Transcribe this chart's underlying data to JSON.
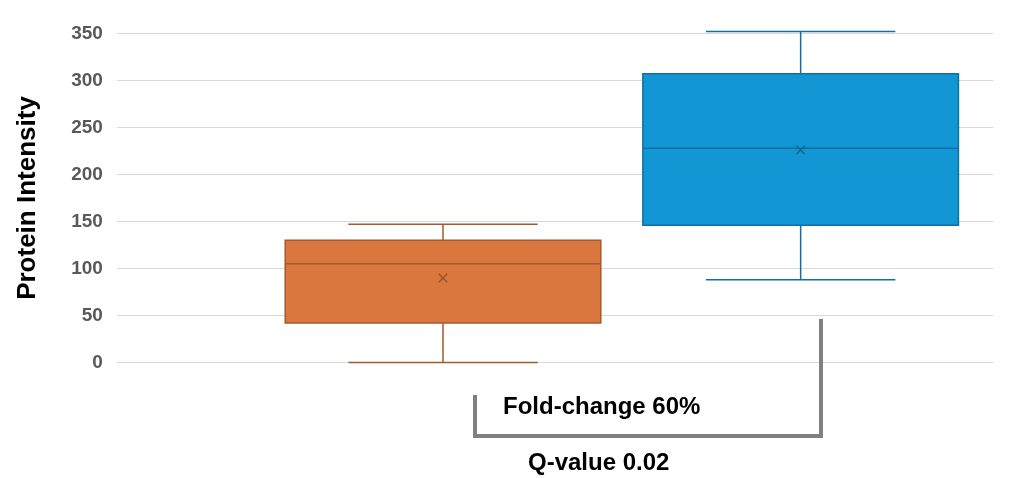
{
  "chart_data": {
    "type": "box",
    "ylabel": "Protein Intensity",
    "categories": [
      null
    ],
    "series": [
      {
        "color": "#d9773f",
        "boxes": [
          {
            "low": 0,
            "q1": 42,
            "median": 105,
            "q3": 130,
            "high": 147,
            "mean": 90
          }
        ]
      },
      {
        "color": "#1297d4",
        "boxes": [
          {
            "low": 88,
            "q1": 146,
            "median": 228,
            "q3": 307,
            "high": 352,
            "mean": 226
          }
        ]
      }
    ],
    "ylim": [
      0,
      350
    ],
    "yticks": [
      0,
      50,
      100,
      150,
      200,
      250,
      300,
      350
    ],
    "grid": "y",
    "legend": false,
    "marker": "cross",
    "annotations": [
      "Fold-change 60%",
      "Q-value 0.02"
    ]
  }
}
